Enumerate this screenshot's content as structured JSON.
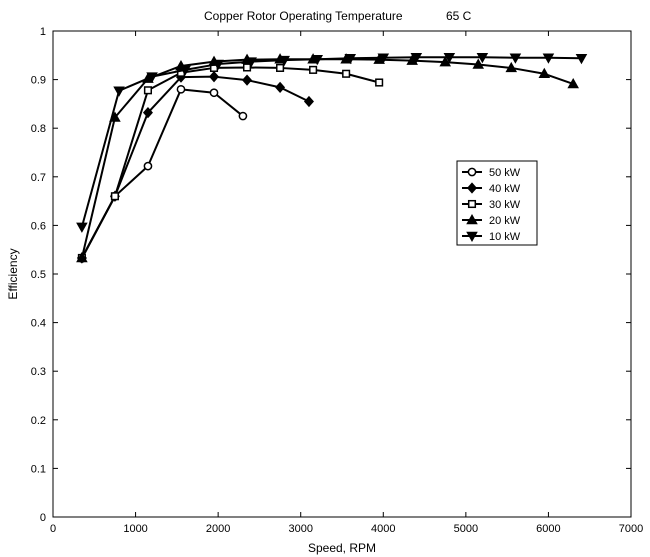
{
  "chart_data": {
    "type": "line",
    "title": "Copper Rotor Operating Temperature",
    "title_suffix": "65 C",
    "xlabel": "Speed, RPM",
    "ylabel": "Efficiency",
    "xlim": [
      0,
      7000
    ],
    "ylim": [
      0,
      1
    ],
    "xticks": [
      0,
      1000,
      2000,
      3000,
      4000,
      5000,
      6000,
      7000
    ],
    "yticks": [
      0,
      0.1,
      0.2,
      0.3,
      0.4,
      0.5,
      0.6,
      0.7,
      0.8,
      0.9,
      1
    ],
    "grid": false,
    "legend_position": "right",
    "series": [
      {
        "name": "50 kW",
        "marker": "circle",
        "x": [
          350,
          750,
          1150,
          1550,
          1950,
          2300
        ],
        "y": [
          0.532,
          0.66,
          0.722,
          0.88,
          0.873,
          0.825
        ]
      },
      {
        "name": "40 kW",
        "marker": "diamond",
        "x": [
          350,
          750,
          1150,
          1550,
          1950,
          2350,
          2750,
          3100
        ],
        "y": [
          0.533,
          0.66,
          0.832,
          0.905,
          0.906,
          0.899,
          0.884,
          0.855
        ]
      },
      {
        "name": "30 kW",
        "marker": "square",
        "x": [
          350,
          750,
          1150,
          1550,
          1950,
          2350,
          2750,
          3150,
          3550,
          3950
        ],
        "y": [
          0.533,
          0.66,
          0.878,
          0.914,
          0.924,
          0.925,
          0.924,
          0.92,
          0.912,
          0.894
        ]
      },
      {
        "name": "20 kW",
        "marker": "triangle-up",
        "x": [
          350,
          750,
          1150,
          1550,
          1950,
          2350,
          2750,
          3150,
          3550,
          3950,
          4350,
          4750,
          5150,
          5550,
          5950,
          6300
        ],
        "y": [
          0.533,
          0.822,
          0.902,
          0.928,
          0.937,
          0.941,
          0.942,
          0.942,
          0.942,
          0.941,
          0.939,
          0.936,
          0.931,
          0.924,
          0.912,
          0.891
        ]
      },
      {
        "name": "10 kW",
        "marker": "triangle-down",
        "x": [
          350,
          800,
          1200,
          1600,
          2000,
          2400,
          2800,
          3200,
          3600,
          4000,
          4400,
          4800,
          5200,
          5600,
          6000,
          6400
        ],
        "y": [
          0.597,
          0.877,
          0.906,
          0.92,
          0.932,
          0.937,
          0.94,
          0.942,
          0.944,
          0.945,
          0.946,
          0.946,
          0.946,
          0.945,
          0.945,
          0.944
        ]
      }
    ]
  }
}
